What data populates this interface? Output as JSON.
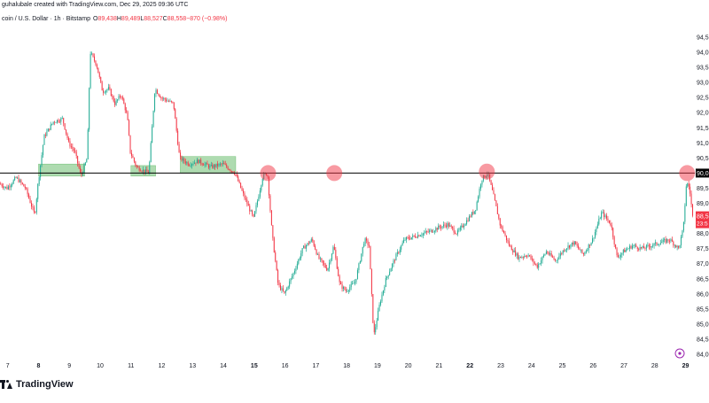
{
  "header": {
    "creator": "guhalubale created with TradingView.com, Dec 29, 2025 09:36 UTC",
    "symbol": "coin / U.S. Dollar · 1h · Bitstamp",
    "ohlc": [
      {
        "label": "O",
        "value": "89,438"
      },
      {
        "label": "H",
        "value": "89,489"
      },
      {
        "label": "L",
        "value": "88,527"
      },
      {
        "label": "C",
        "value": "88,558"
      },
      {
        "label": "",
        "value": "−870 (−0.98%)"
      }
    ]
  },
  "brand": {
    "name": "TradingView"
  },
  "colors": {
    "up": "#22ab94",
    "down": "#f23645",
    "zone": "#4caf50",
    "marker": "#f23645",
    "level": "#000000",
    "last_price_bg": "#f23645",
    "level_label_bg": "#000000"
  },
  "chart_data": {
    "type": "candlestick",
    "interval": "1h",
    "x_axis_labels": [
      "7",
      "8",
      "9",
      "10",
      "11",
      "12",
      "13",
      "14",
      "15",
      "16",
      "17",
      "18",
      "19",
      "20",
      "21",
      "22",
      "23",
      "24",
      "25",
      "26",
      "27",
      "28",
      "29"
    ],
    "x_axis_bold": [
      "8",
      "15",
      "22",
      "29"
    ],
    "y_axis_labels": [
      "94,5",
      "94,0",
      "93,5",
      "93,0",
      "92,5",
      "92,0",
      "91,5",
      "91,0",
      "90,5",
      "90,0",
      "89,5",
      "89,0",
      "88,5",
      "88,0",
      "87,5",
      "87,0",
      "86,5",
      "86,0",
      "85,5",
      "85,0",
      "84,5",
      "84,0"
    ],
    "y_axis_values": [
      94500,
      94000,
      93500,
      93000,
      92500,
      92000,
      91500,
      91000,
      90500,
      90000,
      89500,
      89000,
      88500,
      88000,
      87500,
      87000,
      86500,
      86000,
      85500,
      85000,
      84500,
      84000
    ],
    "ylim": [
      84000,
      94500
    ],
    "xlim": [
      6.75,
      29.3
    ],
    "horizontal_level": {
      "value": 90000,
      "label": "90,0"
    },
    "last_price": {
      "value": 88558,
      "label": "88,5",
      "countdown": "23:5"
    },
    "support_zones": [
      {
        "x_start": 8.0,
        "x_end": 9.5,
        "y_low": 89900,
        "y_high": 90300
      },
      {
        "x_start": 11.0,
        "x_end": 11.8,
        "y_low": 89900,
        "y_high": 90250
      },
      {
        "x_start": 12.6,
        "x_end": 14.4,
        "y_low": 90000,
        "y_high": 90550
      }
    ],
    "markers": [
      {
        "x": 15.45,
        "y": 90000
      },
      {
        "x": 17.6,
        "y": 90000
      },
      {
        "x": 22.55,
        "y": 90050
      },
      {
        "x": 29.05,
        "y": 90000
      }
    ],
    "path": [
      [
        6.75,
        89650
      ],
      [
        7.0,
        89500
      ],
      [
        7.3,
        89850
      ],
      [
        7.6,
        89500
      ],
      [
        7.9,
        88600
      ],
      [
        8.0,
        89600
      ],
      [
        8.2,
        91200
      ],
      [
        8.5,
        91700
      ],
      [
        8.8,
        91800
      ],
      [
        9.0,
        91000
      ],
      [
        9.2,
        90700
      ],
      [
        9.4,
        89900
      ],
      [
        9.6,
        90500
      ],
      [
        9.7,
        94000
      ],
      [
        9.9,
        93600
      ],
      [
        10.1,
        92700
      ],
      [
        10.3,
        92800
      ],
      [
        10.5,
        92300
      ],
      [
        10.7,
        92600
      ],
      [
        10.9,
        91900
      ],
      [
        11.0,
        90700
      ],
      [
        11.2,
        90200
      ],
      [
        11.4,
        90100
      ],
      [
        11.6,
        90000
      ],
      [
        11.8,
        92800
      ],
      [
        12.0,
        92500
      ],
      [
        12.2,
        92400
      ],
      [
        12.4,
        92300
      ],
      [
        12.6,
        90500
      ],
      [
        12.9,
        90300
      ],
      [
        13.2,
        90400
      ],
      [
        13.6,
        90200
      ],
      [
        14.0,
        90300
      ],
      [
        14.4,
        90000
      ],
      [
        14.7,
        89200
      ],
      [
        15.0,
        88500
      ],
      [
        15.3,
        89900
      ],
      [
        15.45,
        90000
      ],
      [
        15.6,
        88000
      ],
      [
        15.8,
        86300
      ],
      [
        16.0,
        86000
      ],
      [
        16.3,
        86700
      ],
      [
        16.6,
        87500
      ],
      [
        16.9,
        87800
      ],
      [
        17.1,
        87200
      ],
      [
        17.4,
        86800
      ],
      [
        17.6,
        87600
      ],
      [
        17.8,
        86300
      ],
      [
        18.0,
        86100
      ],
      [
        18.3,
        86400
      ],
      [
        18.6,
        87800
      ],
      [
        18.75,
        87600
      ],
      [
        18.9,
        84600
      ],
      [
        19.1,
        85700
      ],
      [
        19.3,
        86500
      ],
      [
        19.6,
        87200
      ],
      [
        19.9,
        87800
      ],
      [
        20.2,
        87900
      ],
      [
        20.5,
        88000
      ],
      [
        20.8,
        88100
      ],
      [
        21.0,
        88200
      ],
      [
        21.3,
        88300
      ],
      [
        21.6,
        88000
      ],
      [
        21.9,
        88400
      ],
      [
        22.2,
        88800
      ],
      [
        22.4,
        89800
      ],
      [
        22.6,
        90000
      ],
      [
        22.8,
        89200
      ],
      [
        23.0,
        88300
      ],
      [
        23.3,
        87600
      ],
      [
        23.6,
        87200
      ],
      [
        23.9,
        87300
      ],
      [
        24.2,
        86900
      ],
      [
        24.5,
        87400
      ],
      [
        24.8,
        87100
      ],
      [
        25.1,
        87500
      ],
      [
        25.4,
        87700
      ],
      [
        25.7,
        87300
      ],
      [
        26.0,
        87800
      ],
      [
        26.3,
        88700
      ],
      [
        26.6,
        88300
      ],
      [
        26.8,
        87200
      ],
      [
        27.0,
        87400
      ],
      [
        27.3,
        87600
      ],
      [
        27.6,
        87500
      ],
      [
        27.9,
        87600
      ],
      [
        28.2,
        87700
      ],
      [
        28.5,
        87800
      ],
      [
        28.8,
        87500
      ],
      [
        28.95,
        88200
      ],
      [
        29.05,
        89700
      ],
      [
        29.15,
        89500
      ],
      [
        29.25,
        88558
      ]
    ]
  }
}
